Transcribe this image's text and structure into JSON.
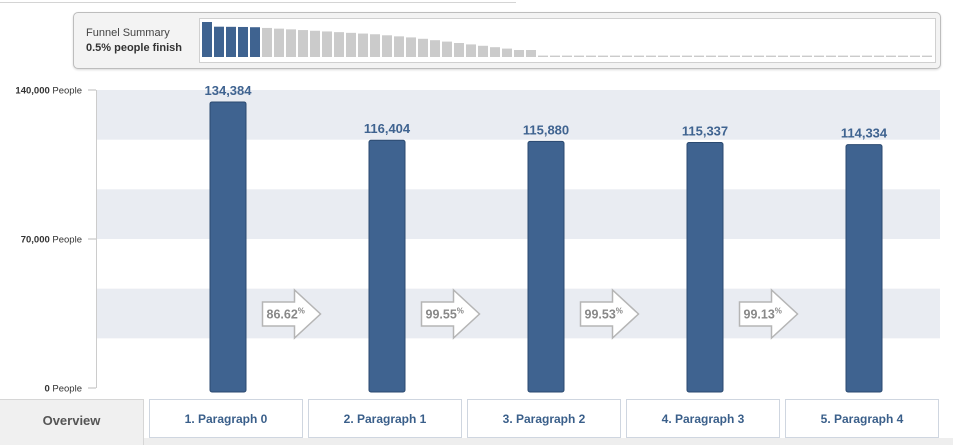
{
  "funnel_summary": {
    "title": "Funnel Summary",
    "subtitle": "0.5% people finish",
    "highlighted_steps": 5,
    "step_levels": [
      1.0,
      0.866,
      0.862,
      0.858,
      0.851,
      0.83,
      0.81,
      0.79,
      0.77,
      0.75,
      0.73,
      0.71,
      0.69,
      0.67,
      0.65,
      0.62,
      0.59,
      0.56,
      0.52,
      0.48,
      0.44,
      0.4,
      0.36,
      0.32,
      0.28,
      0.24,
      0.2,
      0.2,
      0.04,
      0.04,
      0.04,
      0.04,
      0.04,
      0.04,
      0.04,
      0.04,
      0.04,
      0.04,
      0.04,
      0.04,
      0.04,
      0.04,
      0.04,
      0.04,
      0.04,
      0.04,
      0.04,
      0.04,
      0.04,
      0.04,
      0.04,
      0.04,
      0.04,
      0.04,
      0.04,
      0.04,
      0.04,
      0.04,
      0.04,
      0.04,
      0.04,
      0.04,
      0.04,
      0.04,
      0.04,
      0.04,
      0.04,
      0.04,
      0.04,
      0.04,
      0.04,
      0.04,
      0.04,
      0.04,
      0.04,
      0.04,
      0.04,
      0.04,
      0.04,
      0.04,
      0.04,
      0.04,
      0.04,
      0.04,
      0.04,
      0.04,
      0.04,
      0.04,
      0.04,
      0.04,
      0.04,
      0.04,
      0.04,
      0.04,
      0.04,
      0.04,
      0.04,
      0.04,
      0.04,
      0.04,
      0.04,
      0.04,
      0.04,
      0.04,
      0.04,
      0.04,
      0.04,
      0.04,
      0.04,
      0.04,
      0.04,
      0.04,
      0.04,
      0.04,
      0.04,
      0.04,
      0.04,
      0.04,
      0.04,
      0.04,
      0.04,
      0.04,
      0.04,
      0.04
    ],
    "highlight_color": "#3f6390",
    "muted_color": "#cbcbcb"
  },
  "chart_data": {
    "type": "bar",
    "categories": [
      "1. Paragraph 0",
      "2. Paragraph 1",
      "3. Paragraph 2",
      "4. Paragraph 3",
      "5. Paragraph 4"
    ],
    "values": [
      134384,
      116404,
      115880,
      115337,
      114334
    ],
    "value_labels": [
      "134,384",
      "116,404",
      "115,880",
      "115,337",
      "114,334"
    ],
    "conversion_labels": [
      "86.62",
      "99.55",
      "99.53",
      "99.13"
    ],
    "percent_sign": "%",
    "ylim": [
      0,
      150000
    ],
    "y_ticks": [
      {
        "value": 0,
        "label": "0",
        "unit": "People"
      },
      {
        "value": 70000,
        "label": "70,000",
        "unit": "People"
      },
      {
        "value": 140000,
        "label": "140,000",
        "unit": "People"
      }
    ],
    "bar_color": "#3f6390",
    "band_color": "#e9ecf2",
    "value_label_color": "#3f6390"
  },
  "tabs": {
    "overview": "Overview",
    "steps": [
      "1. Paragraph 0",
      "2. Paragraph 1",
      "3. Paragraph 2",
      "4. Paragraph 3",
      "5. Paragraph 4"
    ]
  }
}
